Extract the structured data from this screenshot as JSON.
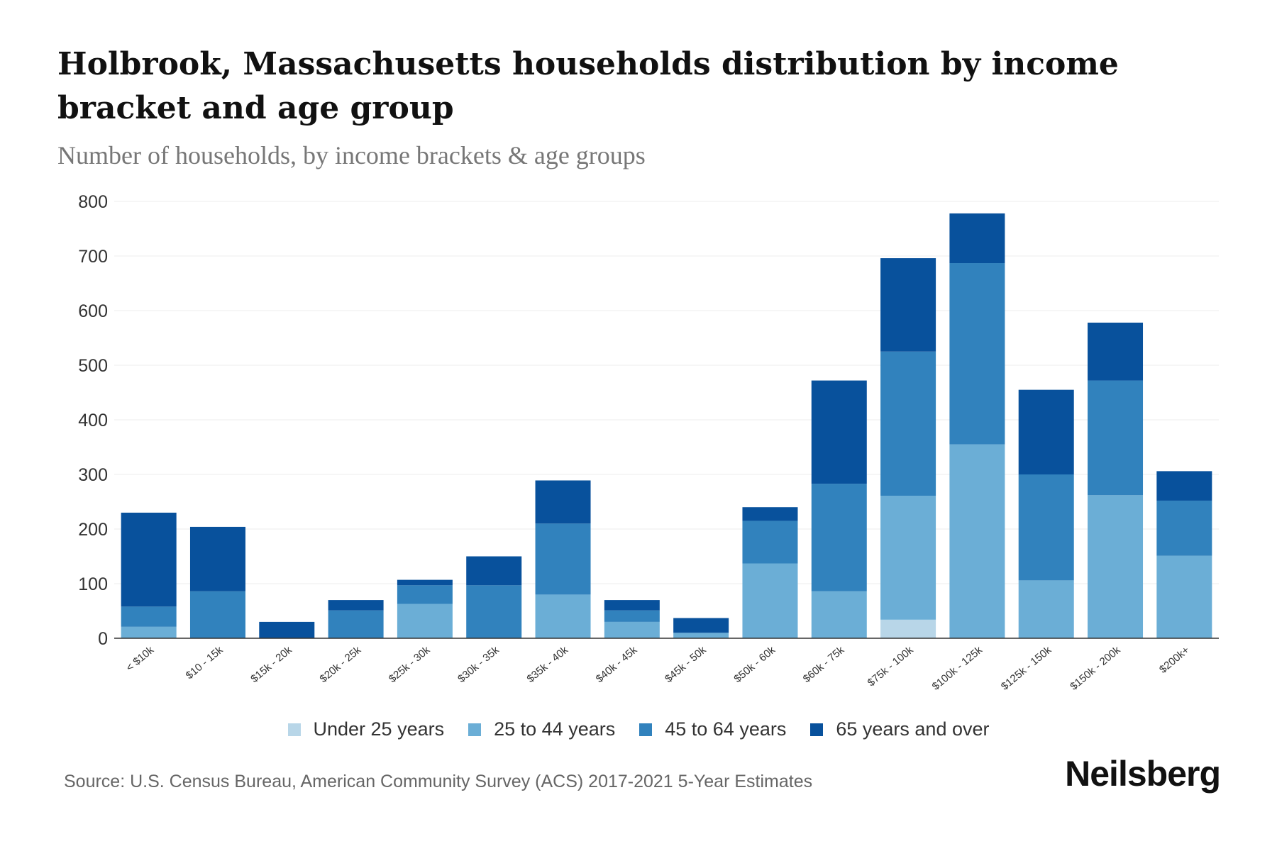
{
  "chart_data": {
    "type": "bar",
    "stacked": true,
    "title": "Holbrook, Massachusetts households distribution by income bracket and age group",
    "subtitle": "Number of households, by income brackets & age groups",
    "xlabel": "",
    "ylabel": "",
    "ylim": [
      0,
      800
    ],
    "yticks": [
      0,
      100,
      200,
      300,
      400,
      500,
      600,
      700,
      800
    ],
    "grid": true,
    "legend_position": "bottom",
    "categories": [
      "< $10k",
      "$10 - 15k",
      "$15k - 20k",
      "$20k - 25k",
      "$25k - 30k",
      "$30k - 35k",
      "$35k - 40k",
      "$40k - 45k",
      "$45k - 50k",
      "$50k - 60k",
      "$60k - 75k",
      "$75k - 100k",
      "$100k - 125k",
      "$125k - 150k",
      "$150k - 200k",
      "$200k+"
    ],
    "series": [
      {
        "name": "Under 25 years",
        "color": "#b8d6e8",
        "values": [
          0,
          0,
          0,
          0,
          0,
          0,
          0,
          0,
          0,
          0,
          0,
          34,
          0,
          0,
          0,
          0
        ]
      },
      {
        "name": "25 to 44 years",
        "color": "#6baed6",
        "values": [
          21,
          0,
          0,
          0,
          63,
          0,
          80,
          30,
          10,
          137,
          86,
          227,
          355,
          106,
          262,
          151
        ]
      },
      {
        "name": "45 to 64 years",
        "color": "#3182bd",
        "values": [
          37,
          86,
          0,
          51,
          34,
          97,
          130,
          21,
          0,
          78,
          197,
          264,
          332,
          194,
          210,
          101
        ]
      },
      {
        "name": "65 years and over",
        "color": "#08519c",
        "values": [
          172,
          118,
          30,
          19,
          10,
          53,
          79,
          19,
          27,
          25,
          189,
          171,
          91,
          155,
          106,
          54
        ]
      }
    ]
  },
  "source": "Source: U.S. Census Bureau, American Community Survey (ACS) 2017-2021 5-Year Estimates",
  "brand": "Neilsberg"
}
